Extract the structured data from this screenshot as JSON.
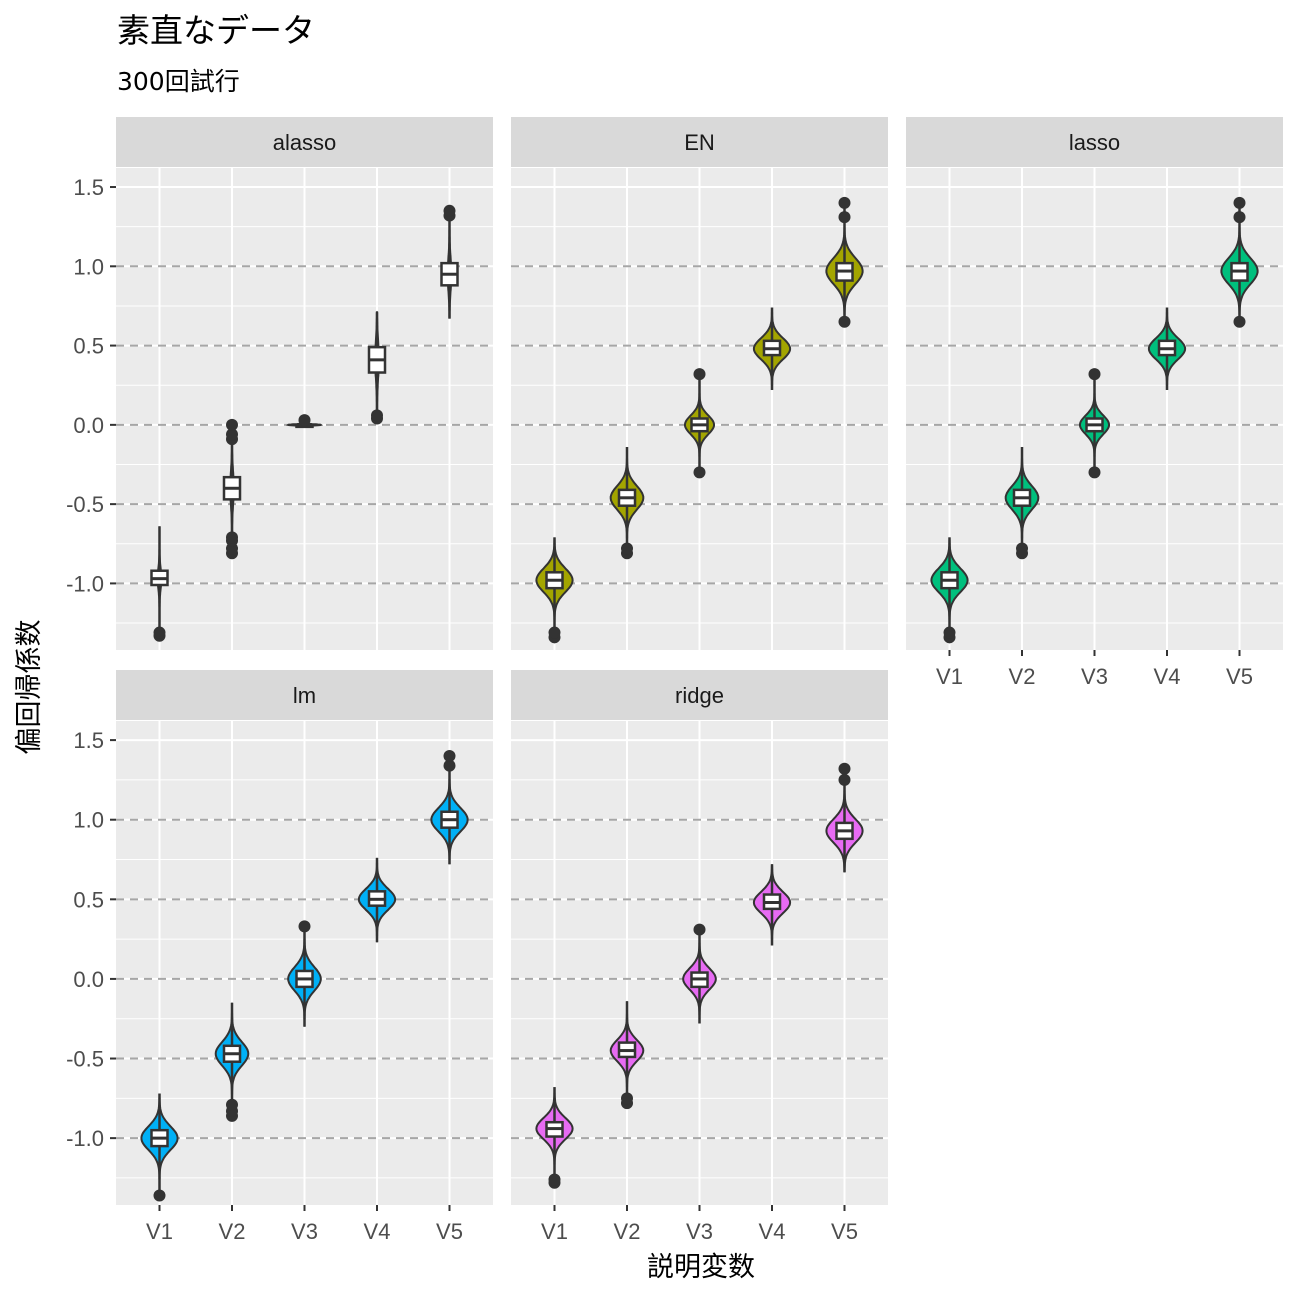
{
  "chart_data": {
    "type": "violin",
    "title": "素直なデータ",
    "subtitle": "300回試行",
    "xlabel": "説明変数",
    "ylabel": "偏回帰係数",
    "categories": [
      "V1",
      "V2",
      "V3",
      "V4",
      "V5"
    ],
    "y_ticks": [
      "-1.0",
      "-0.5",
      "0.0",
      "0.5",
      "1.0",
      "1.5"
    ],
    "y_tick_values": [
      -1.0,
      -0.5,
      0.0,
      0.5,
      1.0,
      1.5
    ],
    "ylim": [
      -1.42,
      1.62
    ],
    "reference_lines": [
      -1.0,
      -0.5,
      0.0,
      0.5,
      1.0
    ],
    "grid": true,
    "legend": "none",
    "panels": [
      {
        "name": "alasso",
        "fill": "#ffffff",
        "series": [
          {
            "category": "V1",
            "min": -1.34,
            "q1": -1.01,
            "median": -0.97,
            "q3": -0.92,
            "max": -0.64,
            "outliers": [
              -1.33,
              -1.31
            ],
            "max_width": 0.05
          },
          {
            "category": "V2",
            "min": -0.81,
            "q1": -0.47,
            "median": -0.4,
            "q3": -0.33,
            "max": 0.01,
            "outliers": [
              -0.81,
              -0.78,
              -0.73,
              -0.71,
              -0.09,
              -0.06,
              0.0
            ],
            "max_width": 0.05
          },
          {
            "category": "V3",
            "min": -0.01,
            "q1": 0.0,
            "median": 0.0,
            "q3": 0.0,
            "max": 0.04,
            "outliers": [
              0.03
            ],
            "max_width": 0.45
          },
          {
            "category": "V4",
            "min": 0.04,
            "q1": 0.33,
            "median": 0.41,
            "q3": 0.49,
            "max": 0.71,
            "outliers": [
              0.04,
              0.06
            ],
            "max_width": 0.05
          },
          {
            "category": "V5",
            "min": 0.67,
            "q1": 0.88,
            "median": 0.95,
            "q3": 1.02,
            "max": 1.35,
            "outliers": [
              1.32,
              1.35
            ],
            "max_width": 0.05
          }
        ]
      },
      {
        "name": "EN",
        "fill": "#a3a500",
        "series": [
          {
            "category": "V1",
            "min": -1.34,
            "q1": -1.03,
            "median": -0.98,
            "q3": -0.93,
            "max": -0.71,
            "outliers": [
              -1.34,
              -1.31
            ],
            "max_width": 0.5
          },
          {
            "category": "V2",
            "min": -0.81,
            "q1": -0.51,
            "median": -0.46,
            "q3": -0.41,
            "max": -0.14,
            "outliers": [
              -0.81,
              -0.78
            ],
            "max_width": 0.45
          },
          {
            "category": "V3",
            "min": -0.3,
            "q1": -0.04,
            "median": 0.0,
            "q3": 0.04,
            "max": 0.33,
            "outliers": [
              -0.3,
              0.32
            ],
            "max_width": 0.4
          },
          {
            "category": "V4",
            "min": 0.22,
            "q1": 0.44,
            "median": 0.48,
            "q3": 0.53,
            "max": 0.74,
            "outliers": [],
            "max_width": 0.5
          },
          {
            "category": "V5",
            "min": 0.65,
            "q1": 0.91,
            "median": 0.97,
            "q3": 1.02,
            "max": 1.4,
            "outliers": [
              0.65,
              1.31,
              1.4
            ],
            "max_width": 0.5
          }
        ]
      },
      {
        "name": "lasso",
        "fill": "#00bf7d",
        "series": [
          {
            "category": "V1",
            "min": -1.34,
            "q1": -1.03,
            "median": -0.98,
            "q3": -0.93,
            "max": -0.71,
            "outliers": [
              -1.34,
              -1.31
            ],
            "max_width": 0.5
          },
          {
            "category": "V2",
            "min": -0.81,
            "q1": -0.51,
            "median": -0.46,
            "q3": -0.41,
            "max": -0.14,
            "outliers": [
              -0.81,
              -0.78
            ],
            "max_width": 0.45
          },
          {
            "category": "V3",
            "min": -0.3,
            "q1": -0.04,
            "median": 0.0,
            "q3": 0.04,
            "max": 0.33,
            "outliers": [
              -0.3,
              0.32
            ],
            "max_width": 0.4
          },
          {
            "category": "V4",
            "min": 0.22,
            "q1": 0.44,
            "median": 0.48,
            "q3": 0.53,
            "max": 0.74,
            "outliers": [],
            "max_width": 0.5
          },
          {
            "category": "V5",
            "min": 0.65,
            "q1": 0.91,
            "median": 0.97,
            "q3": 1.02,
            "max": 1.4,
            "outliers": [
              0.65,
              1.31,
              1.4
            ],
            "max_width": 0.5
          }
        ]
      },
      {
        "name": "lm",
        "fill": "#00b0f6",
        "series": [
          {
            "category": "V1",
            "min": -1.36,
            "q1": -1.05,
            "median": -1.0,
            "q3": -0.95,
            "max": -0.72,
            "outliers": [
              -1.36
            ],
            "max_width": 0.5
          },
          {
            "category": "V2",
            "min": -0.86,
            "q1": -0.52,
            "median": -0.47,
            "q3": -0.42,
            "max": -0.15,
            "outliers": [
              -0.86,
              -0.83,
              -0.79
            ],
            "max_width": 0.45
          },
          {
            "category": "V3",
            "min": -0.3,
            "q1": -0.05,
            "median": 0.0,
            "q3": 0.05,
            "max": 0.33,
            "outliers": [
              0.33
            ],
            "max_width": 0.45
          },
          {
            "category": "V4",
            "min": 0.23,
            "q1": 0.46,
            "median": 0.5,
            "q3": 0.55,
            "max": 0.76,
            "outliers": [],
            "max_width": 0.5
          },
          {
            "category": "V5",
            "min": 0.72,
            "q1": 0.95,
            "median": 1.0,
            "q3": 1.05,
            "max": 1.41,
            "outliers": [
              1.34,
              1.4
            ],
            "max_width": 0.5
          }
        ]
      },
      {
        "name": "ridge",
        "fill": "#e76bf3",
        "series": [
          {
            "category": "V1",
            "min": -1.28,
            "q1": -0.99,
            "median": -0.94,
            "q3": -0.9,
            "max": -0.68,
            "outliers": [
              -1.28,
              -1.26
            ],
            "max_width": 0.5
          },
          {
            "category": "V2",
            "min": -0.78,
            "q1": -0.49,
            "median": -0.45,
            "q3": -0.4,
            "max": -0.14,
            "outliers": [
              -0.78,
              -0.75
            ],
            "max_width": 0.45
          },
          {
            "category": "V3",
            "min": -0.28,
            "q1": -0.05,
            "median": 0.0,
            "q3": 0.04,
            "max": 0.31,
            "outliers": [
              0.31
            ],
            "max_width": 0.45
          },
          {
            "category": "V4",
            "min": 0.21,
            "q1": 0.44,
            "median": 0.48,
            "q3": 0.53,
            "max": 0.72,
            "outliers": [],
            "max_width": 0.5
          },
          {
            "category": "V5",
            "min": 0.67,
            "q1": 0.88,
            "median": 0.93,
            "q3": 0.98,
            "max": 1.32,
            "outliers": [
              1.25,
              1.32
            ],
            "max_width": 0.5
          }
        ]
      }
    ]
  }
}
